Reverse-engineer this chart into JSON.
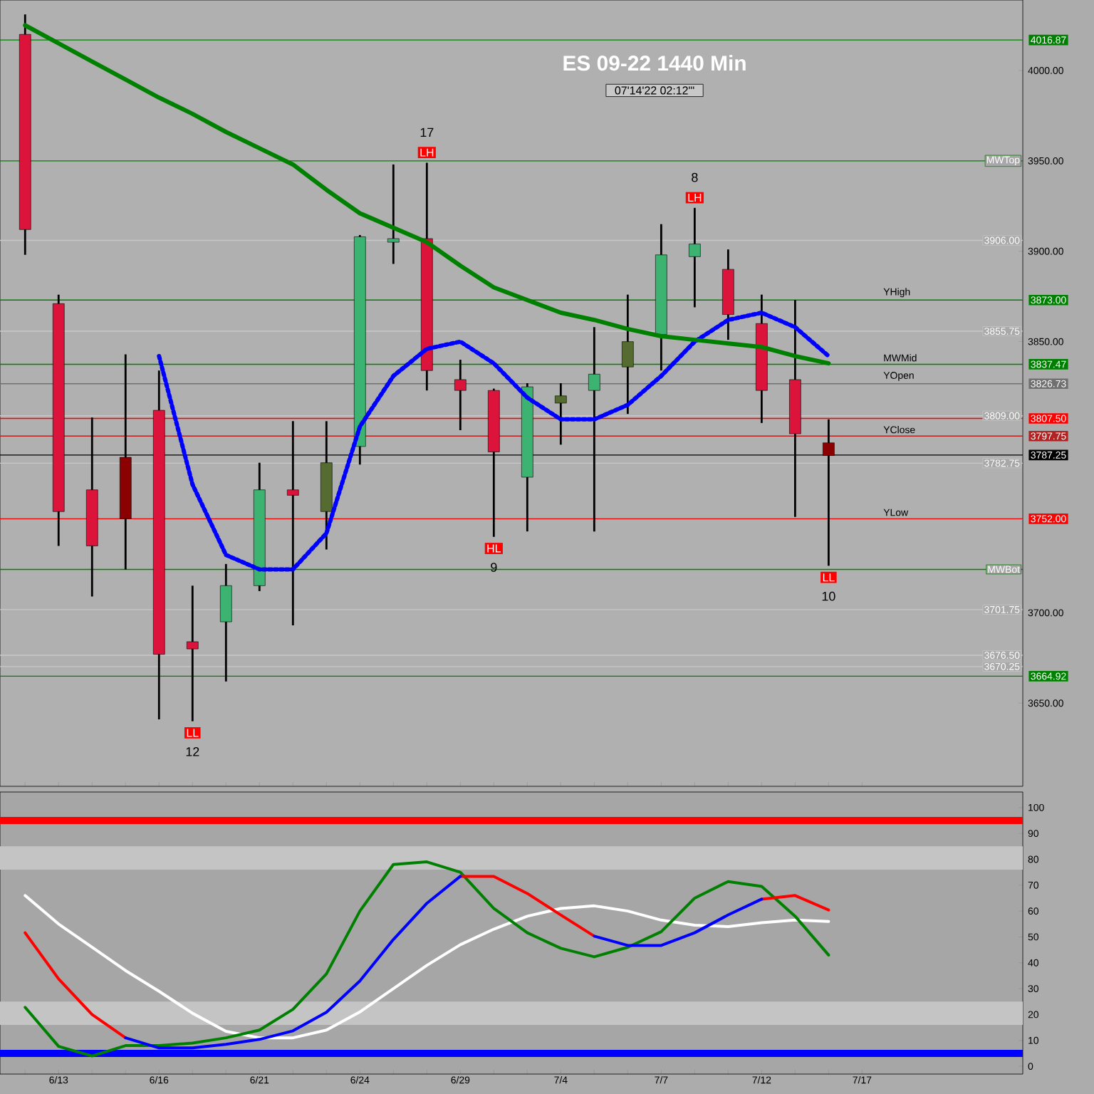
{
  "chart_data": [
    {
      "type": "candlestick",
      "title": "ES  09-22  1440 Min",
      "subtitle": "07'14'22  02:12'\"",
      "categories": [
        null,
        null,
        null,
        null,
        null,
        null,
        null,
        null,
        null,
        null,
        null,
        null,
        null,
        null,
        null,
        null,
        null,
        null,
        null,
        null,
        null,
        null,
        null,
        null,
        null,
        null
      ],
      "ohlc": [
        [
          4020,
          4031,
          3898,
          3912
        ],
        [
          3871,
          3876,
          3737,
          3756
        ],
        [
          3768,
          3808,
          3709,
          3737
        ],
        [
          3752,
          3843,
          3724,
          3786
        ],
        [
          3812,
          3834,
          3641,
          3677
        ],
        [
          3684,
          3715,
          3640,
          3680
        ],
        [
          3695,
          3727,
          3662,
          3715
        ],
        [
          3715,
          3783,
          3712,
          3768
        ],
        [
          3768,
          3806,
          3693,
          3765
        ],
        [
          3756,
          3806,
          3735,
          3783
        ],
        [
          3792,
          3909,
          3782,
          3908
        ],
        [
          3905,
          3948,
          3893,
          3907
        ],
        [
          3907,
          3949,
          3823,
          3834
        ],
        [
          3829,
          3840,
          3801,
          3823
        ],
        [
          3823,
          3824,
          3742,
          3789
        ],
        [
          3775,
          3827,
          3745,
          3825
        ],
        [
          3816,
          3827,
          3793,
          3820
        ],
        [
          3823,
          3858,
          3745,
          3832
        ],
        [
          3836,
          3876,
          3810,
          3850
        ],
        [
          3854,
          3915,
          3834,
          3898
        ],
        [
          3897,
          3924,
          3869,
          3904
        ],
        [
          3890,
          3901,
          3851,
          3865
        ],
        [
          3860,
          3876,
          3805,
          3823
        ],
        [
          3829,
          3873,
          3753,
          3799
        ],
        [
          3794,
          3807,
          3726,
          3787
        ],
        null
      ],
      "colors": [
        "#dc143c",
        "#dc143c",
        "#dc143c",
        "#8b0000",
        "#dc143c",
        "#dc143c",
        "#3cb371",
        "#3cb371",
        "#dc143c",
        "#556b2f",
        "#3cb371",
        "#3cb371",
        "#dc143c",
        "#dc143c",
        "#dc143c",
        "#3cb371",
        "#556b2f",
        "#3cb371",
        "#556b2f",
        "#3cb371",
        "#3cb371",
        "#dc143c",
        "#dc143c",
        "#dc143c",
        "#8b0000",
        "#dc143c"
      ],
      "series": [
        {
          "type": "line",
          "color": "#0000ff",
          "line_style": "dotted",
          "values": [
            null,
            null,
            null,
            null,
            3842,
            3771,
            3732,
            3724,
            3724,
            3744,
            3803,
            3831,
            3846,
            3850,
            3838,
            3819,
            3807,
            3807,
            3815,
            3831,
            3850,
            3862,
            3866,
            3858,
            3842,
            null
          ]
        },
        {
          "type": "line",
          "color": "#008000",
          "line_style": "solid",
          "values": [
            4025,
            4015,
            4005,
            3995,
            3985,
            3976,
            3966,
            3957,
            3948,
            3934,
            3921,
            3913,
            3905,
            3892,
            3880,
            3873,
            3866,
            3862,
            3857,
            3853,
            3851,
            3849,
            3847,
            3842,
            3838,
            null
          ]
        }
      ],
      "ylim": [
        3604,
        4039
      ],
      "yticks": [
        {
          "value": 3650,
          "label": "3650.00"
        },
        {
          "value": 3700,
          "label": "3700.00"
        },
        {
          "value": 3850,
          "label": "3850.00"
        },
        {
          "value": 3900,
          "label": "3900.00"
        },
        {
          "value": 3950,
          "label": "3950.00"
        },
        {
          "value": 4000,
          "label": "4000.00"
        }
      ],
      "tick_labels": "y",
      "ref_lines": [
        {
          "axis": "y",
          "value": 4016.87,
          "label": "4016.87",
          "color": "#008000"
        },
        {
          "axis": "y",
          "value": 3873,
          "label": "3873.00",
          "color": "#008000"
        },
        {
          "axis": "y",
          "value": 3837.47,
          "label": "3837.47",
          "color": "#008000"
        },
        {
          "axis": "y",
          "value": 3826.73,
          "label": "3826.73",
          "color": "#707070"
        },
        {
          "axis": "y",
          "value": 3807.5,
          "label": "3807.50",
          "color": "#ff0000"
        },
        {
          "axis": "y",
          "value": 3797.75,
          "label": "3797.75",
          "color": "#b22222"
        },
        {
          "axis": "y",
          "value": 3787.25,
          "label": "3787.25",
          "color": "#000000"
        },
        {
          "axis": "y",
          "value": 3752,
          "label": "3752.00",
          "color": "#ff0000"
        },
        {
          "axis": "y",
          "value": 3664.92,
          "label": "3664.92",
          "color": "#008000"
        },
        {
          "axis": "y",
          "value": 3906,
          "label": "3906.00",
          "color": "#c8c8c8",
          "line_style": "solid"
        },
        {
          "axis": "y",
          "value": 3855.75,
          "label": "3855.75",
          "color": "#c8c8c8",
          "line_style": "solid"
        },
        {
          "axis": "y",
          "value": 3809,
          "label": "3809.00",
          "color": "#c8c8c8",
          "line_style": "solid"
        },
        {
          "axis": "y",
          "value": 3782.75,
          "label": "3782.75",
          "color": "#c8c8c8",
          "line_style": "solid"
        },
        {
          "axis": "y",
          "value": 3701.75,
          "label": "3701.75",
          "color": "#c8c8c8",
          "line_style": "solid"
        },
        {
          "axis": "y",
          "value": 3676.5,
          "label": "3676.50",
          "color": "#c8c8c8",
          "line_style": "solid"
        },
        {
          "axis": "y",
          "value": 3670.25,
          "label": "3670.25",
          "color": "#c8c8c8",
          "line_style": "solid"
        },
        {
          "axis": "y",
          "value": 3950,
          "label": "MWTop",
          "color": "#008000",
          "line_style": "solid"
        },
        {
          "axis": "y",
          "value": 3724,
          "label": "MWBot",
          "color": "#008000",
          "line_style": "solid"
        }
      ],
      "annotations": [
        {
          "text": "MWMid",
          "y": 3837.47
        },
        {
          "text": "YHigh",
          "y": 3873
        },
        {
          "text": "YOpen",
          "y": 3826.73
        },
        {
          "text": "YClose",
          "y": 3797.75
        },
        {
          "text": "YLow",
          "y": 3752
        },
        {
          "text": "LH",
          "y": 3949
        },
        {
          "text": "17",
          "y": 3949
        },
        {
          "text": "LH",
          "y": 3924
        },
        {
          "text": "8",
          "y": 3924
        },
        {
          "text": "HL",
          "y": 3742
        },
        {
          "text": "9",
          "y": 3742
        },
        {
          "text": "LL",
          "y": 3640
        },
        {
          "text": "12",
          "y": 3640
        },
        {
          "text": "LL",
          "y": 3726
        },
        {
          "text": "10",
          "y": 3726
        }
      ]
    },
    {
      "type": "line",
      "categories": [
        null,
        "6/13",
        null,
        null,
        "6/16",
        null,
        null,
        "6/21",
        null,
        null,
        "6/24",
        null,
        null,
        "6/29",
        null,
        null,
        "7/4",
        null,
        null,
        "7/7",
        null,
        null,
        "7/12",
        null,
        null,
        "7/17"
      ],
      "series": [
        {
          "color": "#ffffff",
          "values": [
            66,
            55,
            46,
            37,
            29,
            20.5,
            13.5,
            11,
            11,
            14,
            21,
            30,
            39,
            47,
            53,
            58,
            61,
            62,
            60,
            56.5,
            54.5,
            54,
            55.5,
            56.5,
            56,
            null
          ]
        },
        {
          "color": "#008000",
          "values": [
            22.8,
            7.7,
            4,
            8,
            8,
            9,
            11,
            14,
            22,
            35.7,
            60,
            78,
            79,
            75,
            61,
            51.6,
            45.6,
            42.3,
            46,
            52,
            65,
            71.4,
            69.5,
            58,
            43,
            null
          ]
        },
        {
          "color": "#ff0000",
          "values": [
            51.6,
            33.8,
            20,
            11,
            null,
            null,
            null,
            null,
            null,
            null,
            null,
            null,
            null,
            73.4,
            73.4,
            66.8,
            58.5,
            50.3,
            null,
            null,
            null,
            null,
            64.6,
            66,
            60.4,
            null
          ]
        },
        {
          "color": "#0000ff",
          "values": [
            null,
            null,
            null,
            11,
            7.1,
            7.1,
            8.5,
            10.4,
            13.7,
            20.9,
            33,
            49,
            63,
            73.4,
            null,
            null,
            null,
            50.3,
            46.7,
            46.7,
            51.6,
            58.5,
            64.6,
            null,
            null,
            null
          ]
        }
      ],
      "ylim": [
        -3,
        106
      ],
      "yticks": [
        0,
        10,
        20,
        30,
        40,
        50,
        60,
        70,
        80,
        90,
        100
      ],
      "ref_lines": [
        {
          "axis": "y",
          "value": 95,
          "color": "#ff0000",
          "line_style": "solid"
        },
        {
          "axis": "y",
          "value": 5,
          "color": "#0000ff",
          "line_style": "solid"
        }
      ],
      "bands": [
        {
          "axis": "y",
          "from": 16,
          "to": 25,
          "color": "#c4c4c4"
        },
        {
          "axis": "y",
          "from": 76,
          "to": 85,
          "color": "#c4c4c4"
        }
      ]
    }
  ]
}
